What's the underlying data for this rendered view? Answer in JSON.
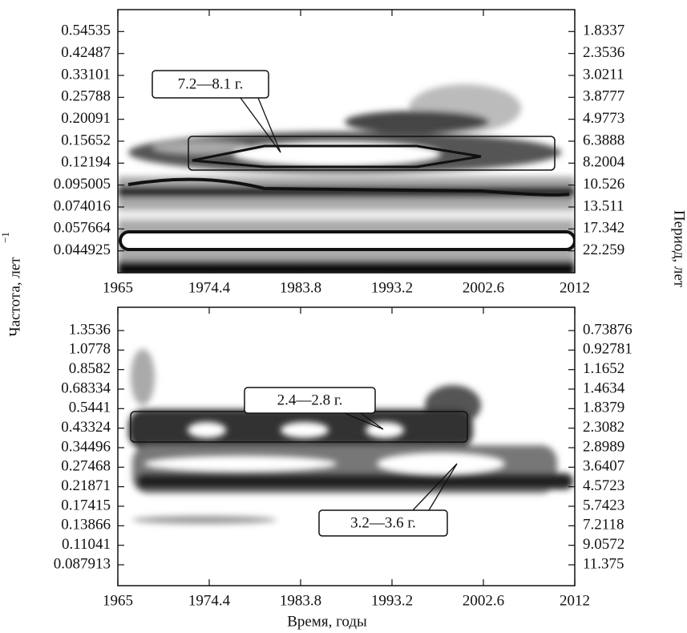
{
  "x_label": "Время, годы",
  "y_label": "Частота, лет",
  "y_label_exponent": "−1",
  "y2_label": "Период, лет",
  "chart_data": [
    {
      "type": "spectrogram",
      "log_y": true,
      "xlim": [
        1965,
        2012
      ],
      "xticks": [
        1965,
        1974.4,
        1983.8,
        1993.2,
        2002.6,
        2012
      ],
      "ylim": [
        0.035,
        0.7
      ],
      "yticks": [
        0.54535,
        0.42487,
        0.33101,
        0.25788,
        0.20091,
        0.15652,
        0.12194,
        0.095005,
        0.074016,
        0.057664,
        0.044925
      ],
      "y2lim": [
        28.57,
        1.429
      ],
      "y2ticks": [
        1.8337,
        2.3536,
        3.0211,
        3.8777,
        4.9773,
        6.3888,
        8.2004,
        10.526,
        13.511,
        17.342,
        22.259
      ],
      "annotations": [
        "7.2—8.1 г."
      ]
    },
    {
      "type": "spectrogram",
      "log_y": true,
      "xlim": [
        1965,
        2012
      ],
      "xticks": [
        1965,
        1974.4,
        1983.8,
        1993.2,
        2002.6,
        2012
      ],
      "ylim": [
        0.0689,
        1.776
      ],
      "yticks": [
        1.3536,
        1.0778,
        0.8582,
        0.68334,
        0.5441,
        0.43324,
        0.34496,
        0.27468,
        0.21871,
        0.17415,
        0.13866,
        0.11041,
        0.087913
      ],
      "y2lim": [
        14.51,
        0.563
      ],
      "y2ticks": [
        0.73876,
        0.92781,
        1.1652,
        1.4634,
        1.8379,
        2.3082,
        2.8989,
        3.6407,
        4.5723,
        5.7423,
        7.2118,
        9.0572,
        11.375
      ],
      "annotations": [
        "2.4—2.8 г.",
        "3.2—3.6 г."
      ]
    }
  ]
}
